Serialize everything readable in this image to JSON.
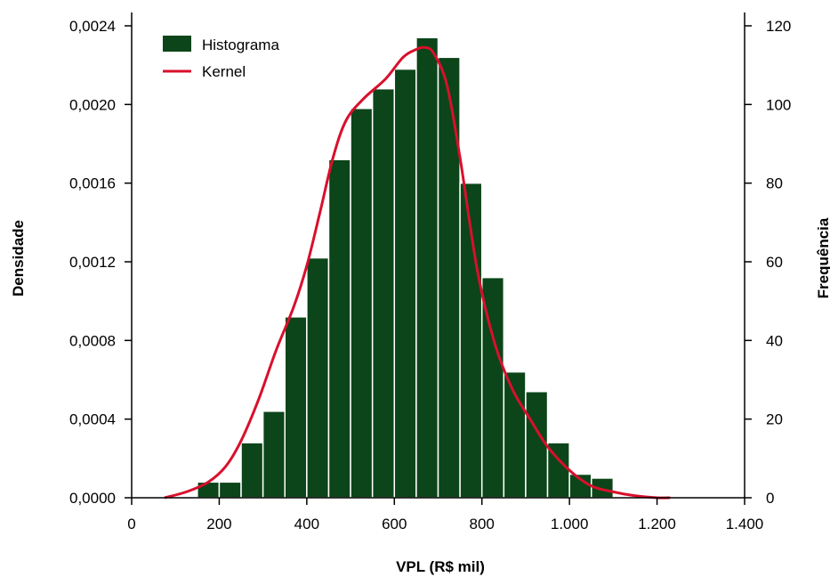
{
  "colors": {
    "bar_fill": "#0b4519",
    "bar_stroke": "#ffffff",
    "kernel_line": "#d8102c",
    "axis": "#000000"
  },
  "chart_data": {
    "type": "bar",
    "title": "",
    "xlabel": "VPL (R$ mil)",
    "ylabel_left": "Densidade",
    "ylabel_right": "Frequência",
    "xlim": [
      0,
      1400
    ],
    "ylim_left": [
      0,
      0.0024
    ],
    "ylim_right": [
      0,
      120
    ],
    "x_ticks": [
      0,
      200,
      400,
      600,
      800,
      1000,
      1200,
      1400
    ],
    "x_tick_labels": [
      "0",
      "200",
      "400",
      "600",
      "800",
      "1.000",
      "1.200",
      "1.400"
    ],
    "y_left_ticks": [
      0,
      0.0004,
      0.0008,
      0.0012,
      0.0016,
      0.002,
      0.0024
    ],
    "y_left_tick_labels": [
      "0,0000",
      "0,0004",
      "0,0008",
      "0,0012",
      "0,0016",
      "0,0020",
      "0,0024"
    ],
    "y_right_ticks": [
      0,
      20,
      40,
      60,
      80,
      100,
      120
    ],
    "y_right_tick_labels": [
      "0",
      "20",
      "40",
      "60",
      "80",
      "100",
      "120"
    ],
    "legend": {
      "position": "top-left",
      "entries": [
        {
          "label": "Histograma",
          "kind": "box"
        },
        {
          "label": "Kernel",
          "kind": "line"
        }
      ]
    },
    "histogram": {
      "name": "Histograma",
      "bin_width": 50,
      "bin_starts": [
        150,
        200,
        250,
        300,
        350,
        400,
        450,
        500,
        550,
        600,
        650,
        700,
        750,
        800,
        850,
        900,
        950,
        1000,
        1050
      ],
      "frequencies": [
        4,
        4,
        14,
        22,
        46,
        61,
        86,
        99,
        104,
        109,
        117,
        112,
        80,
        56,
        32,
        27,
        14,
        6,
        5
      ]
    },
    "kernel": {
      "name": "Kernel",
      "x": [
        75,
        125,
        175,
        215,
        250,
        290,
        330,
        370,
        400,
        430,
        460,
        490,
        530,
        580,
        620,
        650,
        670,
        690,
        720,
        750,
        790,
        830,
        870,
        910,
        950,
        1000,
        1050,
        1100,
        1150,
        1200,
        1230
      ],
      "y": [
        0.0,
        3e-05,
        8e-05,
        0.00016,
        0.00029,
        0.0005,
        0.00075,
        0.00097,
        0.00118,
        0.00145,
        0.00173,
        0.00192,
        0.00203,
        0.00213,
        0.00224,
        0.00228,
        0.00229,
        0.00226,
        0.0021,
        0.00173,
        0.00115,
        0.00078,
        0.00055,
        0.0004,
        0.00026,
        0.00014,
        6e-05,
        3e-05,
        1e-05,
        0.0,
        0.0
      ]
    }
  }
}
